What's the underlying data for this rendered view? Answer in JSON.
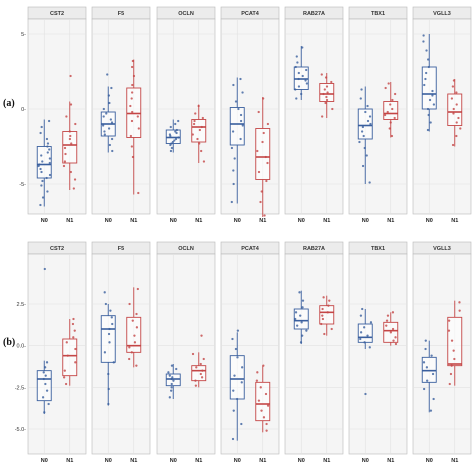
{
  "colors": {
    "N0": "#3a5f9e",
    "N1": "#c44646",
    "strip_bg": "#ececec",
    "panel_bg": "#f5f5f5",
    "grid": "#ffffff"
  },
  "chart_data": [
    {
      "type": "boxplot",
      "panel_label": "(a)",
      "facets": [
        "CST2",
        "F5",
        "OCLN",
        "PCAT4",
        "RAB27A",
        "TBX1",
        "VGLL3"
      ],
      "categories": [
        "N0",
        "N1"
      ],
      "ylim": [
        -7,
        6
      ],
      "yticks": [
        5,
        0,
        -5
      ],
      "ytick_labels": [
        "5-",
        "0-",
        "-5-"
      ],
      "grid": true,
      "series": [
        {
          "facet": "CST2",
          "group": "N0",
          "whisker_low": -6.5,
          "q1": -4.6,
          "median": -3.7,
          "q3": -2.5,
          "whisker_high": -0.7,
          "points": [
            -6.4,
            -5.9,
            -5.5,
            -5.1,
            -4.8,
            -4.6,
            -4.4,
            -4.2,
            -4.0,
            -3.8,
            -3.7,
            -3.6,
            -3.5,
            -3.3,
            -3.1,
            -2.9,
            -2.7,
            -2.5,
            -2.3,
            -2.0,
            -1.6,
            -1.2,
            -0.8
          ]
        },
        {
          "facet": "CST2",
          "group": "N1",
          "whisker_low": -5.4,
          "q1": -3.6,
          "median": -2.4,
          "q3": -1.5,
          "whisker_high": 0.5,
          "points": [
            -5.3,
            -4.7,
            -4.2,
            -3.8,
            -3.5,
            -3.0,
            -2.6,
            -2.3,
            -2.0,
            -1.8,
            -1.5,
            -1.0,
            -0.5,
            0.3,
            2.2
          ]
        },
        {
          "facet": "F5",
          "group": "N0",
          "whisker_low": -2.9,
          "q1": -1.8,
          "median": -1.0,
          "q3": -0.2,
          "whisker_high": 1.5,
          "points": [
            -2.8,
            -2.4,
            -2.0,
            -1.7,
            -1.5,
            -1.3,
            -1.1,
            -0.9,
            -0.7,
            -0.5,
            -0.3,
            0.0,
            0.4,
            0.9,
            1.4,
            2.3
          ]
        },
        {
          "facet": "F5",
          "group": "N1",
          "whisker_low": -5.7,
          "q1": -1.9,
          "median": -0.3,
          "q3": 1.4,
          "whisker_high": 3.3,
          "points": [
            -5.6,
            -3.2,
            -2.5,
            -1.8,
            -1.3,
            -0.8,
            -0.5,
            -0.2,
            0.2,
            0.7,
            1.1,
            1.6,
            2.2,
            2.8,
            3.2
          ]
        },
        {
          "facet": "OCLN",
          "group": "N0",
          "whisker_low": -2.9,
          "q1": -2.3,
          "median": -1.9,
          "q3": -1.4,
          "whisker_high": -0.7,
          "points": [
            -2.8,
            -2.6,
            -2.4,
            -2.3,
            -2.2,
            -2.1,
            -2.0,
            -1.9,
            -1.8,
            -1.7,
            -1.6,
            -1.5,
            -1.4,
            -1.2,
            -1.0,
            -0.8
          ]
        },
        {
          "facet": "OCLN",
          "group": "N1",
          "whisker_low": -3.6,
          "q1": -2.2,
          "median": -1.2,
          "q3": -0.7,
          "whisker_high": 0.3,
          "points": [
            -3.5,
            -2.8,
            -2.3,
            -2.0,
            -1.7,
            -1.4,
            -1.2,
            -1.0,
            -0.8,
            -0.6,
            -0.3,
            0.2
          ]
        },
        {
          "facet": "PCAT4",
          "group": "N0",
          "whisker_low": -6.3,
          "q1": -2.4,
          "median": -1.0,
          "q3": 0.1,
          "whisker_high": 2.1,
          "points": [
            -6.2,
            -5.0,
            -4.1,
            -3.3,
            -2.6,
            -2.0,
            -1.5,
            -1.1,
            -0.8,
            -0.4,
            0.0,
            0.5,
            1.1,
            1.6,
            2.0
          ]
        },
        {
          "facet": "PCAT4",
          "group": "N1",
          "whisker_low": -7.2,
          "q1": -4.7,
          "median": -3.2,
          "q3": -1.3,
          "whisker_high": 0.8,
          "points": [
            -7.1,
            -6.2,
            -5.5,
            -4.8,
            -4.2,
            -3.6,
            -3.2,
            -2.8,
            -2.2,
            -1.6,
            -1.0,
            -0.2,
            0.7
          ]
        },
        {
          "facet": "RAB27A",
          "group": "N0",
          "whisker_low": 0.6,
          "q1": 1.3,
          "median": 2.0,
          "q3": 2.8,
          "whisker_high": 4.2,
          "points": [
            0.7,
            1.0,
            1.3,
            1.5,
            1.7,
            1.9,
            2.0,
            2.2,
            2.4,
            2.6,
            2.8,
            3.1,
            3.5,
            4.1
          ]
        },
        {
          "facet": "RAB27A",
          "group": "N1",
          "whisker_low": -0.6,
          "q1": 0.5,
          "median": 1.0,
          "q3": 1.7,
          "whisker_high": 2.4,
          "points": [
            -0.5,
            0.0,
            0.4,
            0.6,
            0.8,
            1.0,
            1.1,
            1.3,
            1.5,
            1.8,
            2.1,
            2.3
          ]
        },
        {
          "facet": "TBX1",
          "group": "N0",
          "whisker_low": -5.0,
          "q1": -2.0,
          "median": -1.1,
          "q3": 0.0,
          "whisker_high": 1.5,
          "points": [
            -4.9,
            -3.8,
            -3.1,
            -2.6,
            -2.2,
            -1.8,
            -1.5,
            -1.2,
            -1.0,
            -0.8,
            -0.5,
            -0.2,
            0.2,
            0.7,
            1.3
          ]
        },
        {
          "facet": "TBX1",
          "group": "N1",
          "whisker_low": -1.9,
          "q1": -0.7,
          "median": -0.3,
          "q3": 0.5,
          "whisker_high": 1.8,
          "points": [
            -1.8,
            -1.3,
            -0.9,
            -0.6,
            -0.4,
            -0.2,
            0.0,
            0.3,
            0.6,
            1.0,
            1.4,
            1.7
          ]
        },
        {
          "facet": "VGLL3",
          "group": "N0",
          "whisker_low": -1.5,
          "q1": 0.0,
          "median": 1.0,
          "q3": 2.8,
          "whisker_high": 5.0,
          "points": [
            -1.4,
            -0.9,
            -0.4,
            0.0,
            0.3,
            0.6,
            0.9,
            1.2,
            1.6,
            2.0,
            2.4,
            2.8,
            3.3,
            3.9,
            4.5,
            4.9
          ]
        },
        {
          "facet": "VGLL3",
          "group": "N1",
          "whisker_low": -2.5,
          "q1": -1.1,
          "median": -0.2,
          "q3": 1.0,
          "whisker_high": 2.0,
          "points": [
            -2.4,
            -1.8,
            -1.3,
            -0.9,
            -0.6,
            -0.3,
            0.0,
            0.3,
            0.7,
            1.1,
            1.5,
            1.9
          ]
        }
      ]
    },
    {
      "type": "boxplot",
      "panel_label": "(b)",
      "facets": [
        "CST2",
        "F5",
        "OCLN",
        "PCAT4",
        "RAB27A",
        "TBX1",
        "VGLL3"
      ],
      "categories": [
        "N0",
        "N1"
      ],
      "ylim": [
        -6.5,
        5.5
      ],
      "yticks": [
        2.5,
        0.0,
        -2.5,
        -5.0
      ],
      "ytick_labels": [
        "2.5-",
        "0.0-",
        "-2.5-",
        "-5.0-"
      ],
      "grid": true,
      "series": [
        {
          "facet": "CST2",
          "group": "N0",
          "whisker_low": -4.1,
          "q1": -3.3,
          "median": -2.0,
          "q3": -1.5,
          "whisker_high": -0.9,
          "points": [
            -4.0,
            -3.5,
            -3.1,
            -2.7,
            -2.3,
            -2.0,
            -1.8,
            -1.6,
            -1.3,
            -1.0,
            4.6
          ]
        },
        {
          "facet": "CST2",
          "group": "N1",
          "whisker_low": -2.4,
          "q1": -1.8,
          "median": -0.6,
          "q3": 0.4,
          "whisker_high": 1.6,
          "points": [
            -2.3,
            -1.9,
            -1.5,
            -1.0,
            -0.6,
            -0.2,
            0.2,
            0.5,
            0.9,
            1.3,
            1.6
          ]
        },
        {
          "facet": "F5",
          "group": "N0",
          "whisker_low": -3.6,
          "q1": -1.0,
          "median": 1.0,
          "q3": 1.8,
          "whisker_high": 2.5,
          "points": [
            -3.5,
            -2.6,
            -1.7,
            -1.0,
            -0.4,
            0.2,
            0.7,
            1.0,
            1.3,
            1.7,
            2.1,
            2.5,
            3.2
          ]
        },
        {
          "facet": "F5",
          "group": "N1",
          "whisker_low": -1.3,
          "q1": -0.4,
          "median": 0.0,
          "q3": 1.7,
          "whisker_high": 3.5,
          "points": [
            -1.2,
            -0.8,
            -0.4,
            -0.1,
            0.2,
            0.6,
            1.1,
            1.5,
            1.9,
            2.5,
            3.4
          ]
        },
        {
          "facet": "OCLN",
          "group": "N0",
          "whisker_low": -3.2,
          "q1": -2.4,
          "median": -2.0,
          "q3": -1.7,
          "whisker_high": -1.1,
          "points": [
            -3.1,
            -2.7,
            -2.5,
            -2.3,
            -2.1,
            -2.0,
            -1.9,
            -1.8,
            -1.6,
            -1.4,
            -1.2
          ]
        },
        {
          "facet": "OCLN",
          "group": "N1",
          "whisker_low": -2.5,
          "q1": -2.1,
          "median": -1.5,
          "q3": -1.2,
          "whisker_high": -0.4,
          "points": [
            -2.4,
            -2.1,
            -1.9,
            -1.7,
            -1.5,
            -1.3,
            -1.1,
            -0.8,
            -0.5,
            0.6
          ]
        },
        {
          "facet": "PCAT4",
          "group": "N0",
          "whisker_low": -5.7,
          "q1": -3.2,
          "median": -2.0,
          "q3": -0.6,
          "whisker_high": 0.8,
          "points": [
            -5.6,
            -4.7,
            -3.9,
            -3.2,
            -2.7,
            -2.2,
            -1.8,
            -1.3,
            -0.7,
            -0.2,
            0.4,
            0.9
          ]
        },
        {
          "facet": "PCAT4",
          "group": "N1",
          "whisker_low": -5.2,
          "q1": -4.5,
          "median": -3.5,
          "q3": -2.2,
          "whisker_high": -1.2,
          "points": [
            -5.1,
            -4.7,
            -4.3,
            -3.9,
            -3.6,
            -3.3,
            -2.9,
            -2.5,
            -2.1,
            -1.6,
            -1.2
          ]
        },
        {
          "facet": "RAB27A",
          "group": "N0",
          "whisker_low": 0.1,
          "q1": 1.0,
          "median": 1.5,
          "q3": 2.2,
          "whisker_high": 3.3,
          "points": [
            0.2,
            0.6,
            0.9,
            1.2,
            1.4,
            1.6,
            1.8,
            2.0,
            2.3,
            2.7,
            3.2
          ]
        },
        {
          "facet": "RAB27A",
          "group": "N1",
          "whisker_low": 0.6,
          "q1": 1.3,
          "median": 2.0,
          "q3": 2.4,
          "whisker_high": 3.0,
          "points": [
            0.7,
            1.0,
            1.3,
            1.6,
            1.8,
            2.0,
            2.2,
            2.4,
            2.7,
            2.9
          ]
        },
        {
          "facet": "TBX1",
          "group": "N0",
          "whisker_low": -0.2,
          "q1": 0.2,
          "median": 0.5,
          "q3": 1.3,
          "whisker_high": 2.2,
          "points": [
            -2.9,
            -0.1,
            0.2,
            0.4,
            0.6,
            0.8,
            1.1,
            1.4,
            1.8,
            2.2
          ]
        },
        {
          "facet": "TBX1",
          "group": "N1",
          "whisker_low": 0.0,
          "q1": 0.2,
          "median": 0.9,
          "q3": 1.4,
          "whisker_high": 2.0,
          "points": [
            0.1,
            0.3,
            0.5,
            0.8,
            1.0,
            1.2,
            1.5,
            1.8,
            2.0
          ]
        },
        {
          "facet": "VGLL3",
          "group": "N0",
          "whisker_low": -4.0,
          "q1": -2.2,
          "median": -1.5,
          "q3": -0.7,
          "whisker_high": 0.3,
          "points": [
            -3.9,
            -3.2,
            -2.6,
            -2.1,
            -1.7,
            -1.3,
            -1.0,
            -0.6,
            -0.2,
            0.3
          ]
        },
        {
          "facet": "VGLL3",
          "group": "N1",
          "whisker_low": -2.4,
          "q1": -1.2,
          "median": -1.1,
          "q3": 1.7,
          "whisker_high": 2.7,
          "points": [
            -2.3,
            -1.7,
            -1.2,
            -0.8,
            -0.3,
            0.3,
            0.9,
            1.5,
            2.1,
            2.6
          ]
        }
      ]
    }
  ]
}
